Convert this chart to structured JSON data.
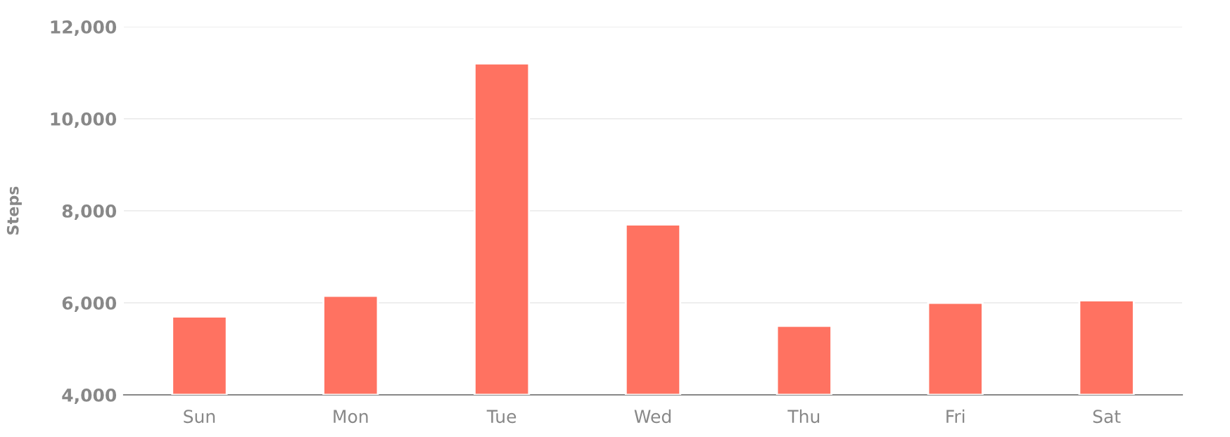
{
  "chart_data": {
    "type": "bar",
    "ylabel": "Steps",
    "categories": [
      "Sun",
      "Mon",
      "Tue",
      "Wed",
      "Thu",
      "Fri",
      "Sat"
    ],
    "values": [
      5700,
      6150,
      11200,
      7700,
      5500,
      6000,
      6050
    ],
    "color": "#ff7261",
    "ylim": [
      4000,
      12000
    ],
    "yticks": [
      {
        "value": 4000,
        "label": "4,000"
      },
      {
        "value": 6000,
        "label": "6,000"
      },
      {
        "value": 8000,
        "label": "8,000"
      },
      {
        "value": 10000,
        "label": "10,000"
      },
      {
        "value": 12000,
        "label": "12,000"
      }
    ],
    "grid": "y",
    "legend": false
  }
}
